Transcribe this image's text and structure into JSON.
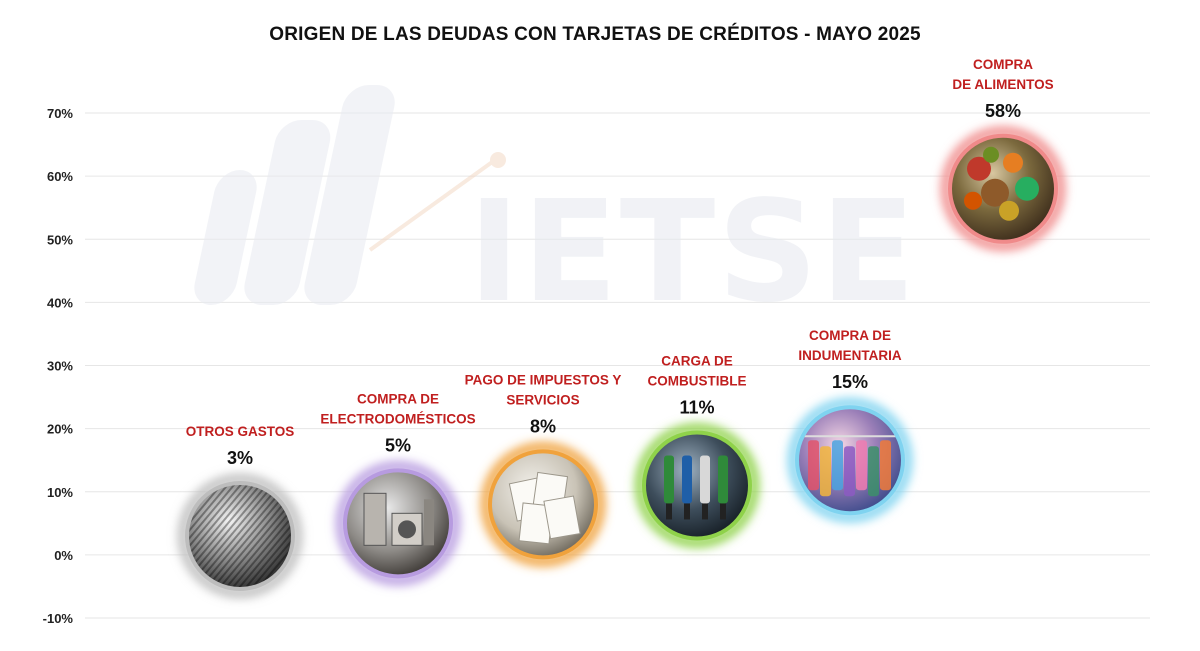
{
  "chart_data": {
    "type": "scatter",
    "title": "ORIGEN DE LAS DEUDAS CON TARJETAS DE CRÉDITOS - MAYO 2025",
    "xlabel": "",
    "ylabel": "",
    "ylim": [
      -10,
      70
    ],
    "yticks": [
      "-10%",
      "0%",
      "10%",
      "20%",
      "30%",
      "40%",
      "50%",
      "60%",
      "70%"
    ],
    "grid": true,
    "watermark": "IETSE",
    "points": [
      {
        "label_lines": [
          "OTROS GASTOS"
        ],
        "value": 3,
        "value_label": "3%",
        "icon": "sphere-icon",
        "ring_color": "#bdbdbd"
      },
      {
        "label_lines": [
          "COMPRA DE",
          "ELECTRODOMÉSTICOS"
        ],
        "value": 5,
        "value_label": "5%",
        "icon": "appliances-icon",
        "ring_color": "#b79be0"
      },
      {
        "label_lines": [
          "PAGO DE IMPUESTOS Y",
          "SERVICIOS"
        ],
        "value": 8,
        "value_label": "8%",
        "icon": "bills-icon",
        "ring_color": "#f0a23c"
      },
      {
        "label_lines": [
          "CARGA DE",
          "COMBUSTIBLE"
        ],
        "value": 11,
        "value_label": "11%",
        "icon": "fuel-pump-icon",
        "ring_color": "#8fd24a"
      },
      {
        "label_lines": [
          "COMPRA DE",
          "INDUMENTARIA"
        ],
        "value": 15,
        "value_label": "15%",
        "icon": "clothing-icon",
        "ring_color": "#7fd3f0"
      },
      {
        "label_lines": [
          "COMPRA",
          "DE ALIMENTOS"
        ],
        "value": 58,
        "value_label": "58%",
        "icon": "groceries-icon",
        "ring_color": "#f08a8a"
      }
    ]
  }
}
